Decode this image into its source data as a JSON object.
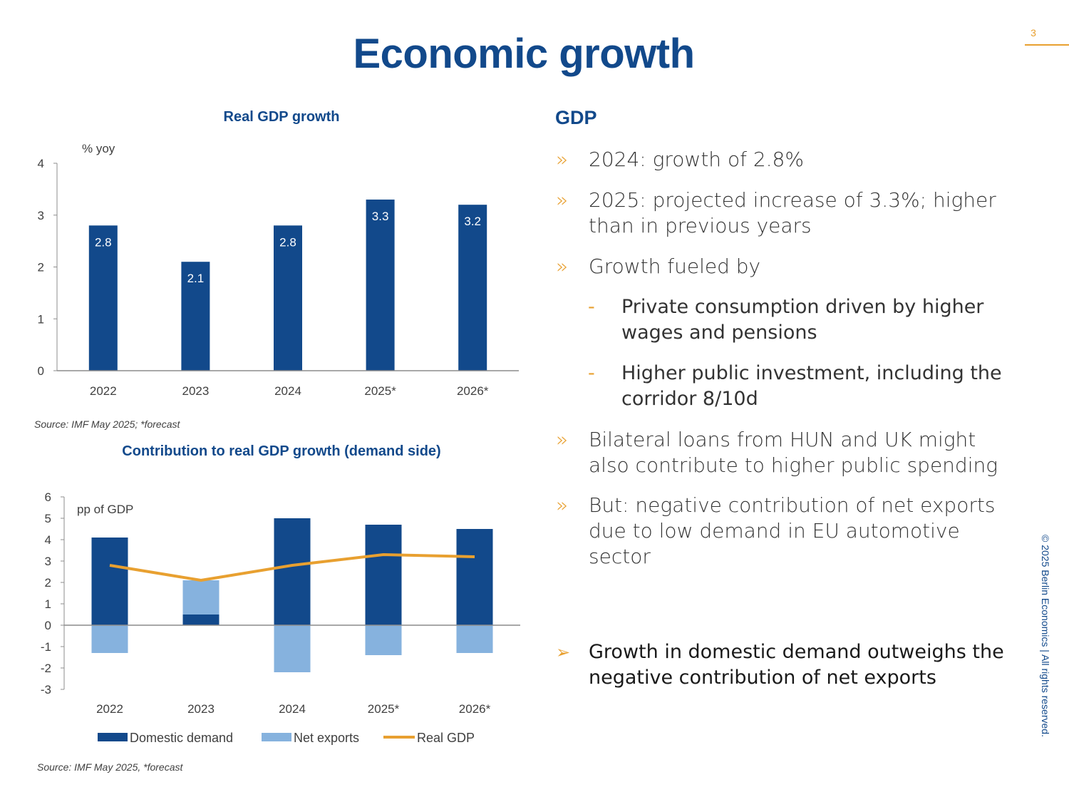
{
  "slide": {
    "title": "Economic growth",
    "page_number": "3",
    "copyright": "© 2025 Berlin Economics | All rights reserved."
  },
  "colors": {
    "primary": "#12498b",
    "light": "#86b2de",
    "accent": "#e8a030"
  },
  "chart_data": [
    {
      "type": "bar",
      "title": "Real GDP growth",
      "ylabel": "% yoy",
      "categories": [
        "2022",
        "2023",
        "2024",
        "2025*",
        "2026*"
      ],
      "values": [
        2.8,
        2.1,
        2.8,
        3.3,
        3.2
      ],
      "value_labels": [
        "2.8",
        "2.1",
        "2.8",
        "3.3",
        "3.2"
      ],
      "ylim": [
        0,
        4
      ],
      "yticks": [
        "0",
        "1",
        "2",
        "3",
        "4"
      ],
      "source": "Source: IMF May 2025; *forecast"
    },
    {
      "type": "bar",
      "stacked": true,
      "title": "Contribution to real GDP growth (demand side)",
      "ylabel": "pp of GDP",
      "categories": [
        "2022",
        "2023",
        "2024",
        "2025*",
        "2026*"
      ],
      "series": [
        {
          "name": "Domestic demand",
          "kind": "bar",
          "values": [
            4.1,
            0.5,
            5.0,
            4.7,
            4.5
          ]
        },
        {
          "name": "Net exports",
          "kind": "bar",
          "values": [
            -1.3,
            1.6,
            -2.2,
            -1.4,
            -1.3
          ]
        },
        {
          "name": "Real GDP",
          "kind": "line",
          "values": [
            2.8,
            2.1,
            2.8,
            3.3,
            3.2
          ]
        }
      ],
      "ylim": [
        -3,
        6
      ],
      "yticks": [
        "-3",
        "-2",
        "-1",
        "0",
        "1",
        "2",
        "3",
        "4",
        "5",
        "6"
      ],
      "source": "Source: IMF May 2025, *forecast"
    }
  ],
  "text_panel": {
    "heading": "GDP",
    "bullets": [
      "2024: growth of 2.8%",
      "2025: projected increase of 3.3%; higher than in previous years",
      "Growth fueled by",
      "Bilateral loans from HUN and UK might also contribute to higher public spending",
      "But: negative contribution of net exports due to low demand in EU automotive sector"
    ],
    "sub_bullets": [
      "Private consumption driven by higher wages and pensions",
      "Higher public investment, including the corridor 8/10d"
    ],
    "bullet_mark": "»",
    "sub_mark": "-",
    "conclusion_mark": "➢",
    "conclusion": "Growth in domestic demand outweighs the negative contribution of net exports"
  }
}
